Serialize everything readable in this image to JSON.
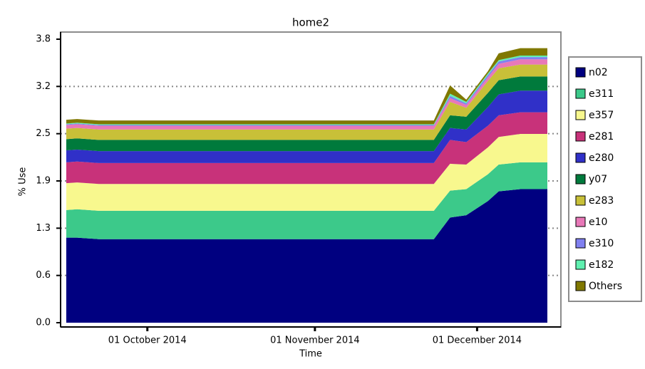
{
  "chart_data": {
    "type": "stacked_area",
    "title": "home2",
    "x_label": "Time",
    "y_label": "% Use",
    "x": [
      "2014-09-16",
      "2014-09-18",
      "2014-09-22",
      "2014-11-23",
      "2014-11-26",
      "2014-11-29",
      "2014-12-03",
      "2014-12-05",
      "2014-12-09",
      "2014-12-14"
    ],
    "xlim": [
      "2014-09-16",
      "2014-12-14"
    ],
    "xticks": [
      {
        "value": "2014-10-01",
        "label": "01 October 2014"
      },
      {
        "value": "2014-11-01",
        "label": "01 November 2014"
      },
      {
        "value": "2014-12-01",
        "label": "01 December 2014"
      }
    ],
    "ylim": [
      0,
      3.8
    ],
    "yticks": [
      {
        "value": 0,
        "label": "0.0"
      },
      {
        "value": 0.6333,
        "label": "0.6"
      },
      {
        "value": 1.2667,
        "label": "1.3"
      },
      {
        "value": 1.9,
        "label": "1.9"
      },
      {
        "value": 2.5333,
        "label": "2.5"
      },
      {
        "value": 3.1667,
        "label": "3.2"
      },
      {
        "value": 3.8,
        "label": "3.8"
      }
    ],
    "grid": true,
    "legend": "right",
    "series": [
      {
        "name": "n02",
        "color": "#000080",
        "values": [
          1.14,
          1.14,
          1.12,
          1.12,
          1.41,
          1.44,
          1.63,
          1.76,
          1.79,
          1.79
        ]
      },
      {
        "name": "e311",
        "color": "#3cc98a",
        "values": [
          0.37,
          0.38,
          0.38,
          0.38,
          0.36,
          0.35,
          0.36,
          0.36,
          0.36,
          0.36
        ]
      },
      {
        "name": "e357",
        "color": "#f8f88e",
        "values": [
          0.36,
          0.36,
          0.36,
          0.36,
          0.36,
          0.33,
          0.36,
          0.37,
          0.38,
          0.38
        ]
      },
      {
        "name": "e281",
        "color": "#c8327a",
        "values": [
          0.28,
          0.28,
          0.28,
          0.28,
          0.32,
          0.3,
          0.29,
          0.29,
          0.29,
          0.29
        ]
      },
      {
        "name": "e280",
        "color": "#3030c8",
        "values": [
          0.16,
          0.16,
          0.16,
          0.16,
          0.16,
          0.17,
          0.25,
          0.28,
          0.29,
          0.29
        ]
      },
      {
        "name": "y07",
        "color": "#007a3c",
        "values": [
          0.15,
          0.15,
          0.15,
          0.15,
          0.17,
          0.17,
          0.19,
          0.19,
          0.19,
          0.19
        ]
      },
      {
        "name": "e283",
        "color": "#c8c038",
        "values": [
          0.14,
          0.14,
          0.14,
          0.14,
          0.18,
          0.12,
          0.16,
          0.16,
          0.16,
          0.16
        ]
      },
      {
        "name": "e10",
        "color": "#e878b8",
        "values": [
          0.05,
          0.05,
          0.05,
          0.05,
          0.05,
          0.04,
          0.05,
          0.06,
          0.07,
          0.07
        ]
      },
      {
        "name": "e310",
        "color": "#8080f0",
        "values": [
          0.01,
          0.01,
          0.01,
          0.01,
          0.03,
          0.02,
          0.03,
          0.03,
          0.03,
          0.03
        ]
      },
      {
        "name": "e182",
        "color": "#60f0b0",
        "values": [
          0.01,
          0.01,
          0.01,
          0.01,
          0.03,
          0.02,
          0.02,
          0.02,
          0.02,
          0.02
        ]
      },
      {
        "name": "Others",
        "color": "#807800",
        "values": [
          0.05,
          0.05,
          0.05,
          0.05,
          0.11,
          0.03,
          0.03,
          0.09,
          0.1,
          0.1
        ]
      }
    ]
  }
}
